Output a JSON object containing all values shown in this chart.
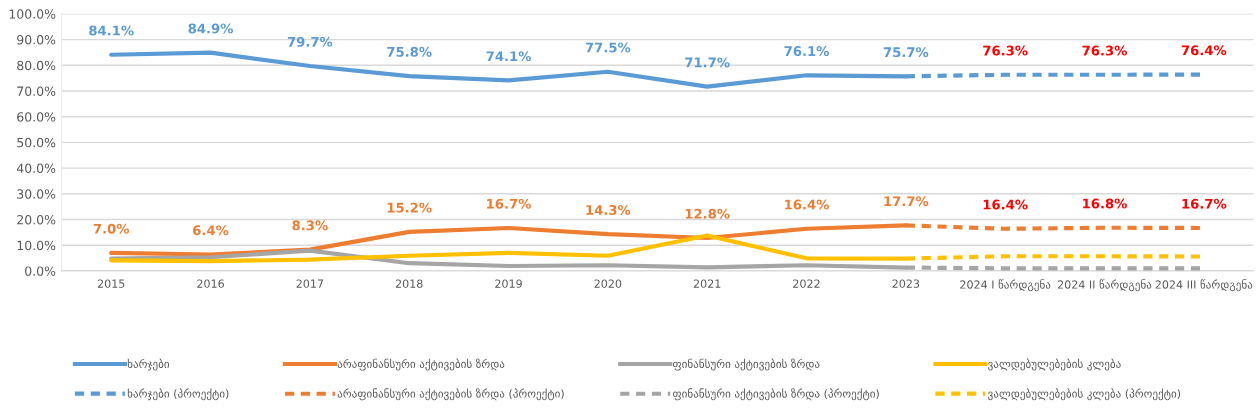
{
  "chart_data": {
    "type": "line",
    "categories": [
      "2015",
      "2016",
      "2017",
      "2018",
      "2019",
      "2020",
      "2021",
      "2022",
      "2023",
      "2024 I წარდგენა",
      "2024 II წარდგენა",
      "2024 III წარდგენა"
    ],
    "ylim": [
      0,
      100
    ],
    "yticks": [
      {
        "value": 0,
        "label": "0.0%"
      },
      {
        "value": 10,
        "label": "10.0%"
      },
      {
        "value": 20,
        "label": "20.0%"
      },
      {
        "value": 30,
        "label": "30.0%"
      },
      {
        "value": 40,
        "label": "40.0%"
      },
      {
        "value": 50,
        "label": "50.0%"
      },
      {
        "value": 60,
        "label": "60.0%"
      },
      {
        "value": 70,
        "label": "70.0%"
      },
      {
        "value": 80,
        "label": "80.0%"
      },
      {
        "value": 90,
        "label": "90.0%"
      },
      {
        "value": 100,
        "label": "100.0%"
      }
    ],
    "grid": "y",
    "legend": "bottom",
    "series": [
      {
        "name": "ხარჯები",
        "color": "#5b9bd5",
        "line_style": "solid",
        "values": [
          84.1,
          84.9,
          79.7,
          75.8,
          74.1,
          77.5,
          71.7,
          76.1,
          75.7,
          null,
          null,
          null
        ],
        "value_labels": [
          "84.1%",
          "84.9%",
          "79.7%",
          "75.8%",
          "74.1%",
          "77.5%",
          "71.7%",
          "76.1%",
          "75.7%",
          null,
          null,
          null
        ]
      },
      {
        "name": "არაფინანსური აქტივების ზრდა",
        "color": "#ed7d31",
        "line_style": "solid",
        "values": [
          7.0,
          6.4,
          8.3,
          15.2,
          16.7,
          14.3,
          12.8,
          16.4,
          17.7,
          null,
          null,
          null
        ],
        "value_labels": [
          "7.0%",
          "6.4%",
          "8.3%",
          "15.2%",
          "16.7%",
          "14.3%",
          "12.8%",
          "16.4%",
          "17.7%",
          null,
          null,
          null
        ]
      },
      {
        "name": "ფინანსური აქტივების ზრდა",
        "color": "#a5a5a5",
        "line_style": "solid",
        "values": [
          4.8,
          5.3,
          7.9,
          3.0,
          1.9,
          2.2,
          1.4,
          2.2,
          1.3,
          null,
          null,
          null
        ]
      },
      {
        "name": "ვალდებულებების კლება",
        "color": "#ffc000",
        "line_style": "solid",
        "values": [
          4.1,
          3.8,
          4.4,
          5.9,
          7.0,
          5.9,
          13.8,
          4.9,
          4.8,
          null,
          null,
          null
        ]
      },
      {
        "name": "ხარჯები (პროექტი)",
        "color": "#5b9bd5",
        "line_style": "dashed",
        "values": [
          null,
          null,
          null,
          null,
          null,
          null,
          null,
          null,
          75.7,
          76.3,
          76.3,
          76.4
        ],
        "value_labels": [
          null,
          null,
          null,
          null,
          null,
          null,
          null,
          null,
          null,
          "76.3%",
          "76.3%",
          "76.4%"
        ]
      },
      {
        "name": "არაფინანსური აქტივების ზრდა (პროექტი)",
        "color": "#ed7d31",
        "line_style": "dashed",
        "values": [
          null,
          null,
          null,
          null,
          null,
          null,
          null,
          null,
          17.7,
          16.4,
          16.8,
          16.7
        ],
        "value_labels": [
          null,
          null,
          null,
          null,
          null,
          null,
          null,
          null,
          null,
          "16.4%",
          "16.8%",
          "16.7%"
        ]
      },
      {
        "name": "ფინანსური აქტივების ზრდა (პროექტი)",
        "color": "#a5a5a5",
        "line_style": "dashed",
        "values": [
          null,
          null,
          null,
          null,
          null,
          null,
          null,
          null,
          1.3,
          1.0,
          1.0,
          1.0
        ]
      },
      {
        "name": "ვალდებულებების კლება (პროექტი)",
        "color": "#ffc000",
        "line_style": "dashed",
        "values": [
          null,
          null,
          null,
          null,
          null,
          null,
          null,
          null,
          4.8,
          5.7,
          5.7,
          5.6
        ]
      }
    ]
  }
}
